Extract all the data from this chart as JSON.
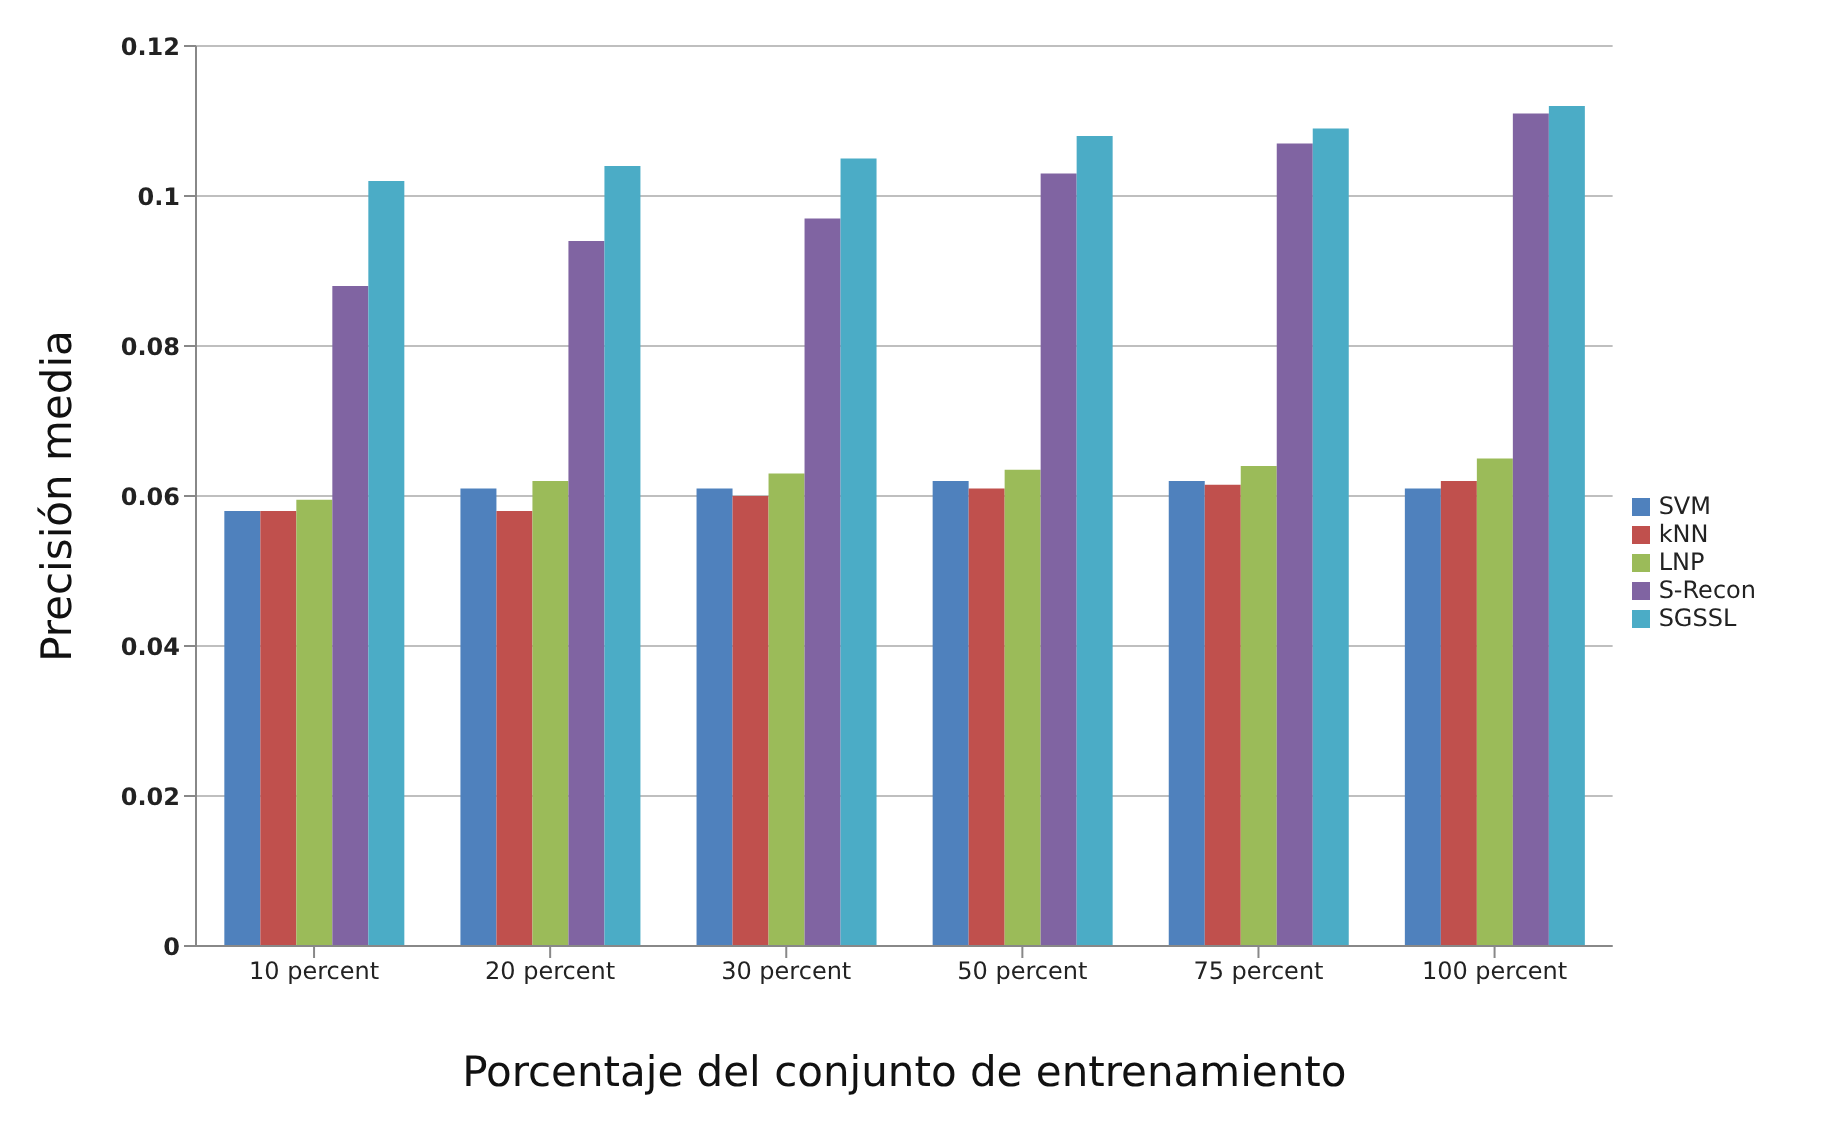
{
  "chart_data": {
    "type": "bar",
    "xlabel": "Porcentaje del conjunto de entrenamiento",
    "ylabel": "Precisión media",
    "categories": [
      "10 percent",
      "20 percent",
      "30 percent",
      "50 percent",
      "75 percent",
      "100 percent"
    ],
    "series": [
      {
        "name": "SVM",
        "color": "#4f81bd",
        "values": [
          0.058,
          0.061,
          0.061,
          0.062,
          0.062,
          0.061
        ]
      },
      {
        "name": "kNN",
        "color": "#c0504d",
        "values": [
          0.058,
          0.058,
          0.06,
          0.061,
          0.0615,
          0.062
        ]
      },
      {
        "name": "LNP",
        "color": "#9bbb59",
        "values": [
          0.0595,
          0.062,
          0.063,
          0.0635,
          0.064,
          0.065
        ]
      },
      {
        "name": "S-Recon",
        "color": "#8064a2",
        "values": [
          0.088,
          0.094,
          0.097,
          0.103,
          0.107,
          0.111
        ]
      },
      {
        "name": "SGSSL",
        "color": "#4bacc6",
        "values": [
          0.102,
          0.104,
          0.105,
          0.108,
          0.109,
          0.112
        ]
      }
    ],
    "ylim": [
      0,
      0.12
    ],
    "yticks": [
      0,
      0.02,
      0.04,
      0.06,
      0.08,
      0.1,
      0.12
    ],
    "grid": "y",
    "legend": "right"
  }
}
